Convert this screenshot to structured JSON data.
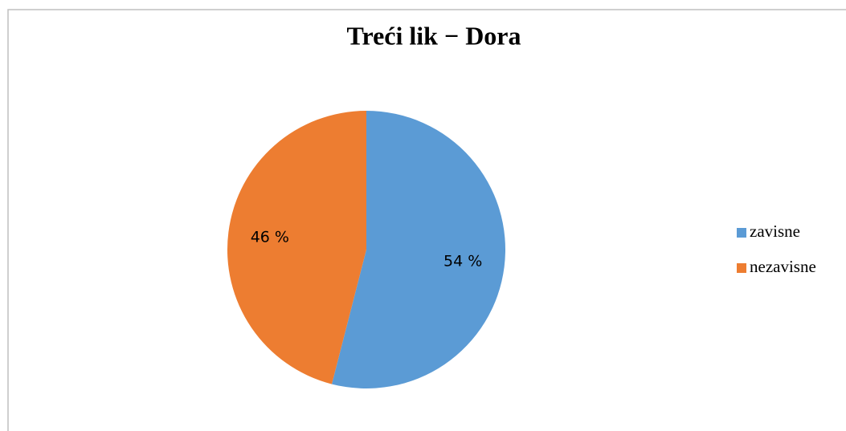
{
  "chart_data": {
    "type": "pie",
    "title": "Treći lik − Dora",
    "categories": [
      "zavisne",
      "nezavisne"
    ],
    "values": [
      54,
      46
    ],
    "value_labels": [
      "54 %",
      "46 %"
    ],
    "colors": [
      "#5b9bd5",
      "#ed7d31"
    ],
    "legend": "right"
  }
}
